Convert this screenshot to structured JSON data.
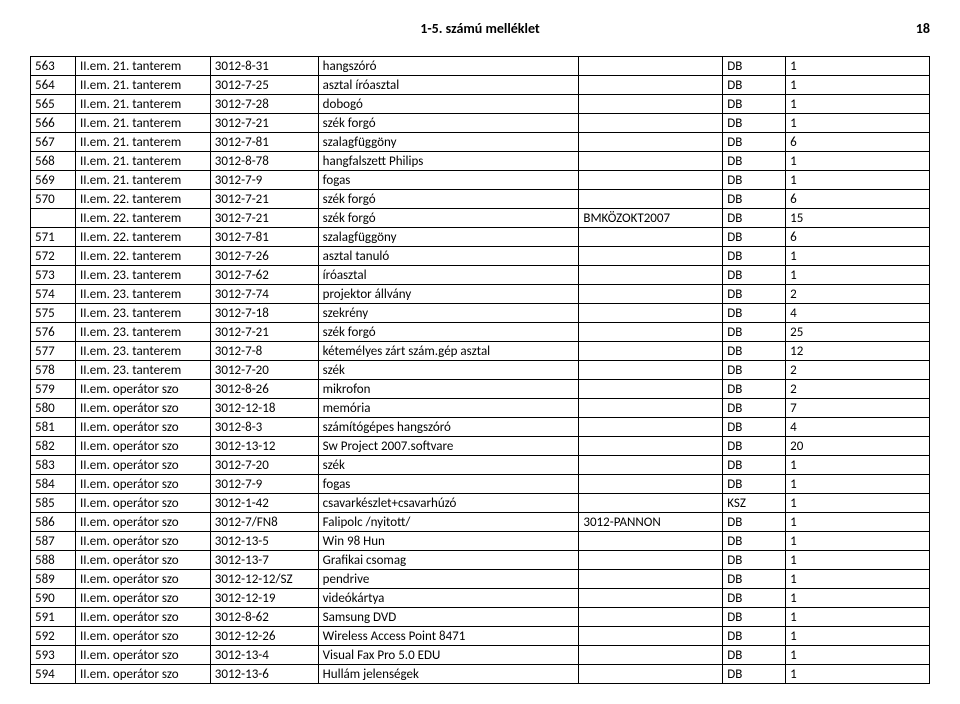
{
  "header": {
    "title": "1-5. számú melléklet",
    "page": "18"
  },
  "table": {
    "rows": [
      [
        "563",
        "II.em. 21. tanterem",
        "3012-8-31",
        "hangszóró",
        "",
        "DB",
        "1"
      ],
      [
        "564",
        "II.em. 21. tanterem",
        "3012-7-25",
        "asztal íróasztal",
        "",
        "DB",
        "1"
      ],
      [
        "565",
        "II.em. 21. tanterem",
        "3012-7-28",
        "dobogó",
        "",
        "DB",
        "1"
      ],
      [
        "566",
        "II.em. 21. tanterem",
        "3012-7-21",
        "szék forgó",
        "",
        "DB",
        "1"
      ],
      [
        "567",
        "II.em. 21. tanterem",
        "3012-7-81",
        "szalagfüggöny",
        "",
        "DB",
        "6"
      ],
      [
        "568",
        "II.em. 21. tanterem",
        "3012-8-78",
        "hangfalszett Philips",
        "",
        "DB",
        "1"
      ],
      [
        "569",
        "II.em. 21. tanterem",
        "3012-7-9",
        "fogas",
        "",
        "DB",
        "1"
      ],
      [
        "570",
        "II.em. 22. tanterem",
        "3012-7-21",
        "szék forgó",
        "",
        "DB",
        "6"
      ],
      [
        "",
        "II.em. 22. tanterem",
        "3012-7-21",
        "szék forgó",
        "BMKÖZOKT2007",
        "DB",
        "15"
      ],
      [
        "571",
        "II.em. 22. tanterem",
        "3012-7-81",
        "szalagfüggöny",
        "",
        "DB",
        "6"
      ],
      [
        "572",
        "II.em. 22. tanterem",
        "3012-7-26",
        "asztal tanuló",
        "",
        "DB",
        "1"
      ],
      [
        "573",
        "II.em. 23. tanterem",
        "3012-7-62",
        "íróasztal",
        "",
        "DB",
        "1"
      ],
      [
        "574",
        "II.em. 23. tanterem",
        "3012-7-74",
        "projektor állvány",
        "",
        "DB",
        "2"
      ],
      [
        "575",
        "II.em. 23. tanterem",
        "3012-7-18",
        "szekrény",
        "",
        "DB",
        "4"
      ],
      [
        "576",
        "II.em. 23. tanterem",
        "3012-7-21",
        "szék forgó",
        "",
        "DB",
        "25"
      ],
      [
        "577",
        "II.em. 23. tanterem",
        "3012-7-8",
        "kétemélyes zárt szám.gép asztal",
        "",
        "DB",
        "12"
      ],
      [
        "578",
        "II.em. 23. tanterem",
        "3012-7-20",
        "szék",
        "",
        "DB",
        "2"
      ],
      [
        "579",
        "II.em. operátor szo",
        "3012-8-26",
        "mikrofon",
        "",
        "DB",
        "2"
      ],
      [
        "580",
        "II.em. operátor szo",
        "3012-12-18",
        "memória",
        "",
        "DB",
        "7"
      ],
      [
        "581",
        "II.em. operátor szo",
        "3012-8-3",
        "számítógépes hangszóró",
        "",
        "DB",
        "4"
      ],
      [
        "582",
        "II.em. operátor szo",
        "3012-13-12",
        "Sw Project 2007.softvare",
        "",
        "DB",
        "20"
      ],
      [
        "583",
        "II.em. operátor szo",
        "3012-7-20",
        "szék",
        "",
        "DB",
        "1"
      ],
      [
        "584",
        "II.em. operátor szo",
        "3012-7-9",
        "fogas",
        "",
        "DB",
        "1"
      ],
      [
        "585",
        "II.em. operátor szo",
        "3012-1-42",
        "csavarkészlet+csavarhúzó",
        "",
        "KSZ",
        "1"
      ],
      [
        "586",
        "II.em. operátor szo",
        "3012-7/FN8",
        "Falipolc  /nyitott/",
        "3012-PANNON",
        "DB",
        "1"
      ],
      [
        "587",
        "II.em. operátor szo",
        "3012-13-5",
        "Win 98 Hun",
        "",
        "DB",
        "1"
      ],
      [
        "588",
        "II.em. operátor szo",
        "3012-13-7",
        "Grafikai csomag",
        "",
        "DB",
        "1"
      ],
      [
        "589",
        "II.em. operátor szo",
        "3012-12-12/SZ",
        "pendrive",
        "",
        "DB",
        "1"
      ],
      [
        "590",
        "II.em. operátor szo",
        "3012-12-19",
        "videókártya",
        "",
        "DB",
        "1"
      ],
      [
        "591",
        "II.em. operátor szo",
        "3012-8-62",
        "Samsung DVD",
        "",
        "DB",
        "1"
      ],
      [
        "592",
        "II.em. operátor szo",
        "3012-12-26",
        "Wireless Access Point 8471",
        "",
        "DB",
        "1"
      ],
      [
        "593",
        "II.em. operátor szo",
        "3012-13-4",
        "Visual Fax Pro 5.0 EDU",
        "",
        "DB",
        "1"
      ],
      [
        "594",
        "II.em. operátor szo",
        "3012-13-6",
        "Hullám jelenségek",
        "",
        "DB",
        "1"
      ]
    ]
  }
}
